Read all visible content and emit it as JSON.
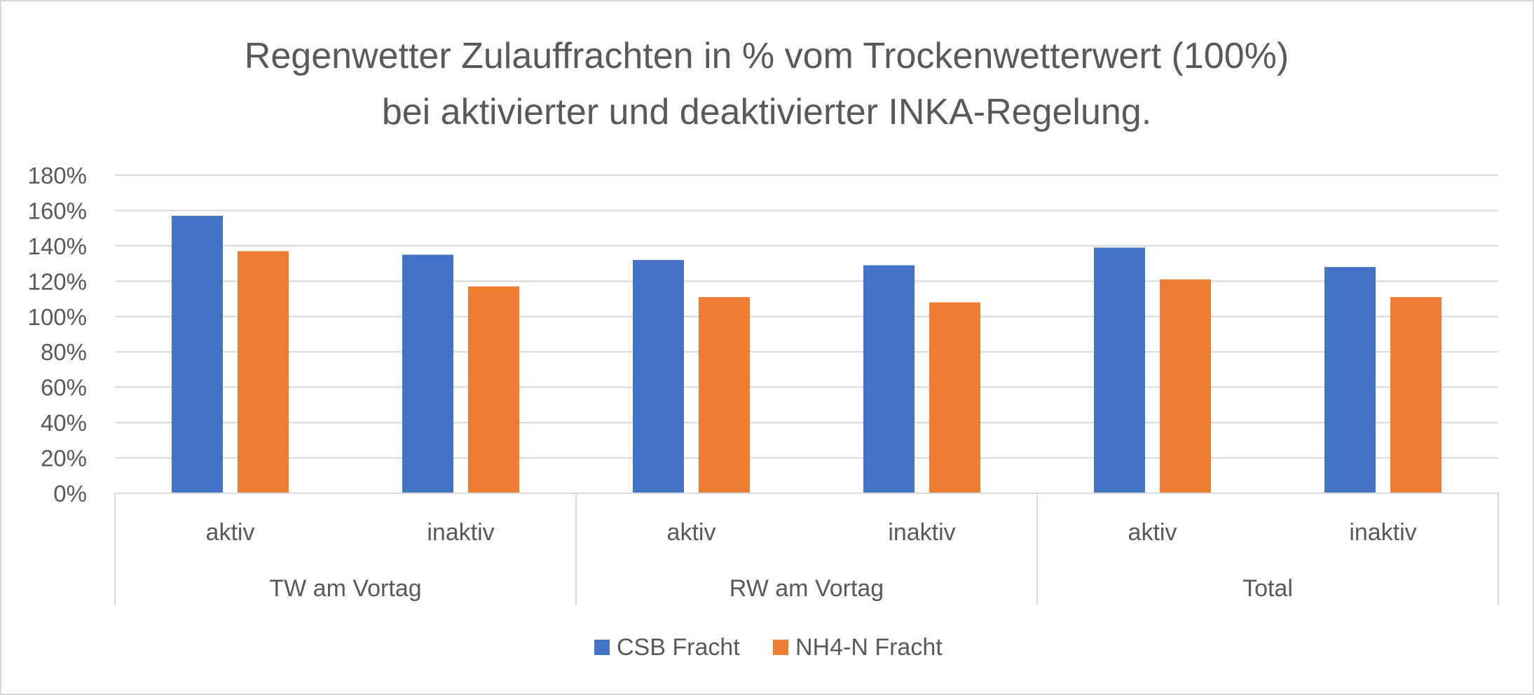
{
  "chart_data": {
    "type": "bar",
    "title_lines": [
      "Regenwetter Zulauffrachten in % vom Trockenwetterwert (100%)",
      "bei aktivierter und deaktivierter INKA-Regelung."
    ],
    "groups": [
      {
        "label": "TW am Vortag",
        "categories": [
          "aktiv",
          "inaktiv"
        ]
      },
      {
        "label": "RW am Vortag",
        "categories": [
          "aktiv",
          "inaktiv"
        ]
      },
      {
        "label": "Total",
        "categories": [
          "aktiv",
          "inaktiv"
        ]
      }
    ],
    "series": [
      {
        "name": "CSB Fracht",
        "color": "#4472C4",
        "values": [
          157,
          135,
          132,
          129,
          139,
          128
        ]
      },
      {
        "name": "NH4-N Fracht",
        "color": "#ED7D31",
        "values": [
          137,
          117,
          111,
          108,
          121,
          111
        ]
      }
    ],
    "ylim": [
      0,
      180
    ],
    "yticks": [
      0,
      20,
      40,
      60,
      80,
      100,
      120,
      140,
      160,
      180
    ],
    "ytick_labels": [
      "0%",
      "20%",
      "40%",
      "60%",
      "80%",
      "100%",
      "120%",
      "140%",
      "160%",
      "180%"
    ],
    "grid": true,
    "legend_position": "bottom"
  }
}
